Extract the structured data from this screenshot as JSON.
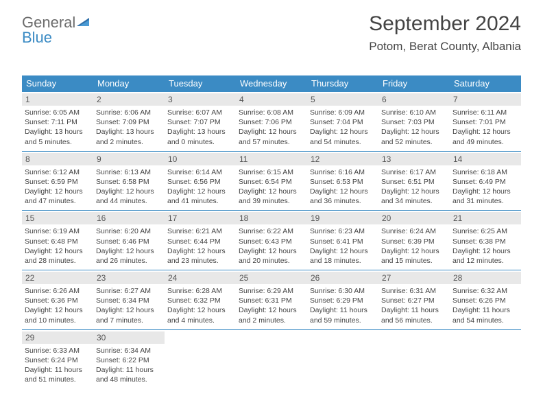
{
  "brand": {
    "word1": "General",
    "word2": "Blue"
  },
  "header": {
    "title": "September 2024",
    "location": "Potom, Berat County, Albania"
  },
  "calendar": {
    "header_bg": "#3b8bc4",
    "header_fg": "#ffffff",
    "daynum_bg": "#e8e8e8",
    "rule_color": "#3b8bc4",
    "day_labels": [
      "Sunday",
      "Monday",
      "Tuesday",
      "Wednesday",
      "Thursday",
      "Friday",
      "Saturday"
    ],
    "weeks": [
      [
        {
          "n": "1",
          "sr": "Sunrise: 6:05 AM",
          "ss": "Sunset: 7:11 PM",
          "dl1": "Daylight: 13 hours",
          "dl2": "and 5 minutes."
        },
        {
          "n": "2",
          "sr": "Sunrise: 6:06 AM",
          "ss": "Sunset: 7:09 PM",
          "dl1": "Daylight: 13 hours",
          "dl2": "and 2 minutes."
        },
        {
          "n": "3",
          "sr": "Sunrise: 6:07 AM",
          "ss": "Sunset: 7:07 PM",
          "dl1": "Daylight: 13 hours",
          "dl2": "and 0 minutes."
        },
        {
          "n": "4",
          "sr": "Sunrise: 6:08 AM",
          "ss": "Sunset: 7:06 PM",
          "dl1": "Daylight: 12 hours",
          "dl2": "and 57 minutes."
        },
        {
          "n": "5",
          "sr": "Sunrise: 6:09 AM",
          "ss": "Sunset: 7:04 PM",
          "dl1": "Daylight: 12 hours",
          "dl2": "and 54 minutes."
        },
        {
          "n": "6",
          "sr": "Sunrise: 6:10 AM",
          "ss": "Sunset: 7:03 PM",
          "dl1": "Daylight: 12 hours",
          "dl2": "and 52 minutes."
        },
        {
          "n": "7",
          "sr": "Sunrise: 6:11 AM",
          "ss": "Sunset: 7:01 PM",
          "dl1": "Daylight: 12 hours",
          "dl2": "and 49 minutes."
        }
      ],
      [
        {
          "n": "8",
          "sr": "Sunrise: 6:12 AM",
          "ss": "Sunset: 6:59 PM",
          "dl1": "Daylight: 12 hours",
          "dl2": "and 47 minutes."
        },
        {
          "n": "9",
          "sr": "Sunrise: 6:13 AM",
          "ss": "Sunset: 6:58 PM",
          "dl1": "Daylight: 12 hours",
          "dl2": "and 44 minutes."
        },
        {
          "n": "10",
          "sr": "Sunrise: 6:14 AM",
          "ss": "Sunset: 6:56 PM",
          "dl1": "Daylight: 12 hours",
          "dl2": "and 41 minutes."
        },
        {
          "n": "11",
          "sr": "Sunrise: 6:15 AM",
          "ss": "Sunset: 6:54 PM",
          "dl1": "Daylight: 12 hours",
          "dl2": "and 39 minutes."
        },
        {
          "n": "12",
          "sr": "Sunrise: 6:16 AM",
          "ss": "Sunset: 6:53 PM",
          "dl1": "Daylight: 12 hours",
          "dl2": "and 36 minutes."
        },
        {
          "n": "13",
          "sr": "Sunrise: 6:17 AM",
          "ss": "Sunset: 6:51 PM",
          "dl1": "Daylight: 12 hours",
          "dl2": "and 34 minutes."
        },
        {
          "n": "14",
          "sr": "Sunrise: 6:18 AM",
          "ss": "Sunset: 6:49 PM",
          "dl1": "Daylight: 12 hours",
          "dl2": "and 31 minutes."
        }
      ],
      [
        {
          "n": "15",
          "sr": "Sunrise: 6:19 AM",
          "ss": "Sunset: 6:48 PM",
          "dl1": "Daylight: 12 hours",
          "dl2": "and 28 minutes."
        },
        {
          "n": "16",
          "sr": "Sunrise: 6:20 AM",
          "ss": "Sunset: 6:46 PM",
          "dl1": "Daylight: 12 hours",
          "dl2": "and 26 minutes."
        },
        {
          "n": "17",
          "sr": "Sunrise: 6:21 AM",
          "ss": "Sunset: 6:44 PM",
          "dl1": "Daylight: 12 hours",
          "dl2": "and 23 minutes."
        },
        {
          "n": "18",
          "sr": "Sunrise: 6:22 AM",
          "ss": "Sunset: 6:43 PM",
          "dl1": "Daylight: 12 hours",
          "dl2": "and 20 minutes."
        },
        {
          "n": "19",
          "sr": "Sunrise: 6:23 AM",
          "ss": "Sunset: 6:41 PM",
          "dl1": "Daylight: 12 hours",
          "dl2": "and 18 minutes."
        },
        {
          "n": "20",
          "sr": "Sunrise: 6:24 AM",
          "ss": "Sunset: 6:39 PM",
          "dl1": "Daylight: 12 hours",
          "dl2": "and 15 minutes."
        },
        {
          "n": "21",
          "sr": "Sunrise: 6:25 AM",
          "ss": "Sunset: 6:38 PM",
          "dl1": "Daylight: 12 hours",
          "dl2": "and 12 minutes."
        }
      ],
      [
        {
          "n": "22",
          "sr": "Sunrise: 6:26 AM",
          "ss": "Sunset: 6:36 PM",
          "dl1": "Daylight: 12 hours",
          "dl2": "and 10 minutes."
        },
        {
          "n": "23",
          "sr": "Sunrise: 6:27 AM",
          "ss": "Sunset: 6:34 PM",
          "dl1": "Daylight: 12 hours",
          "dl2": "and 7 minutes."
        },
        {
          "n": "24",
          "sr": "Sunrise: 6:28 AM",
          "ss": "Sunset: 6:32 PM",
          "dl1": "Daylight: 12 hours",
          "dl2": "and 4 minutes."
        },
        {
          "n": "25",
          "sr": "Sunrise: 6:29 AM",
          "ss": "Sunset: 6:31 PM",
          "dl1": "Daylight: 12 hours",
          "dl2": "and 2 minutes."
        },
        {
          "n": "26",
          "sr": "Sunrise: 6:30 AM",
          "ss": "Sunset: 6:29 PM",
          "dl1": "Daylight: 11 hours",
          "dl2": "and 59 minutes."
        },
        {
          "n": "27",
          "sr": "Sunrise: 6:31 AM",
          "ss": "Sunset: 6:27 PM",
          "dl1": "Daylight: 11 hours",
          "dl2": "and 56 minutes."
        },
        {
          "n": "28",
          "sr": "Sunrise: 6:32 AM",
          "ss": "Sunset: 6:26 PM",
          "dl1": "Daylight: 11 hours",
          "dl2": "and 54 minutes."
        }
      ],
      [
        {
          "n": "29",
          "sr": "Sunrise: 6:33 AM",
          "ss": "Sunset: 6:24 PM",
          "dl1": "Daylight: 11 hours",
          "dl2": "and 51 minutes."
        },
        {
          "n": "30",
          "sr": "Sunrise: 6:34 AM",
          "ss": "Sunset: 6:22 PM",
          "dl1": "Daylight: 11 hours",
          "dl2": "and 48 minutes."
        },
        null,
        null,
        null,
        null,
        null
      ]
    ]
  }
}
